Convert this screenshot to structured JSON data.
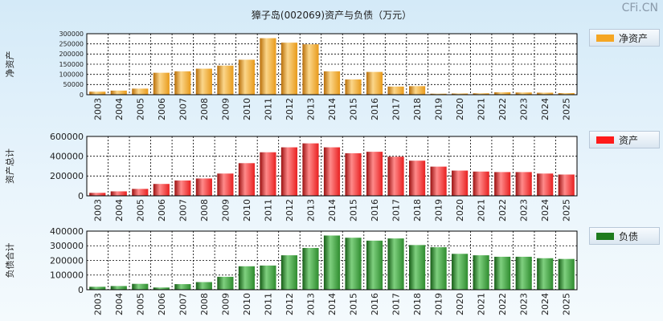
{
  "title": "獐子岛(002069)资产与负债（万元）",
  "watermark": "CFi.CN",
  "colors": {
    "equity": "#f5a623",
    "assets": "#e82020",
    "liabilities": "#228b22"
  },
  "chart_data": [
    {
      "type": "bar",
      "key": "equity",
      "ylabel": "净资产",
      "legend": "净资产",
      "ylim": [
        0,
        300000
      ],
      "yticks": [
        "0",
        "50000",
        "100000",
        "150000",
        "200000",
        "250000",
        "300000"
      ],
      "categories": [
        "2003",
        "2004",
        "2005",
        "2006",
        "2007",
        "2008",
        "2009",
        "2010",
        "2011",
        "2012",
        "2013",
        "2014",
        "2015",
        "2016",
        "2017",
        "2018",
        "2019",
        "2020",
        "2021",
        "2022",
        "2023",
        "2024",
        "2025"
      ],
      "values": [
        15000,
        20000,
        30000,
        108000,
        115000,
        128000,
        143000,
        172000,
        278000,
        256000,
        248000,
        115000,
        75000,
        112000,
        40000,
        42000,
        5000,
        6000,
        7000,
        12000,
        11000,
        10000,
        8000
      ]
    },
    {
      "type": "bar",
      "key": "assets",
      "ylabel": "资产总计",
      "legend": "资产",
      "ylim": [
        0,
        600000
      ],
      "yticks": [
        "0",
        "200000",
        "400000",
        "600000"
      ],
      "categories": [
        "2003",
        "2004",
        "2005",
        "2006",
        "2007",
        "2008",
        "2009",
        "2010",
        "2011",
        "2012",
        "2013",
        "2014",
        "2015",
        "2016",
        "2017",
        "2018",
        "2019",
        "2020",
        "2021",
        "2022",
        "2023",
        "2024",
        "2025"
      ],
      "values": [
        30000,
        45000,
        70000,
        120000,
        155000,
        175000,
        225000,
        330000,
        440000,
        490000,
        530000,
        490000,
        430000,
        445000,
        395000,
        355000,
        295000,
        255000,
        245000,
        240000,
        240000,
        225000,
        215000
      ]
    },
    {
      "type": "bar",
      "key": "liabilities",
      "ylabel": "负债合计",
      "legend": "负债",
      "ylim": [
        0,
        400000
      ],
      "yticks": [
        "0",
        "100000",
        "200000",
        "300000",
        "400000"
      ],
      "categories": [
        "2003",
        "2004",
        "2005",
        "2006",
        "2007",
        "2008",
        "2009",
        "2010",
        "2011",
        "2012",
        "2013",
        "2014",
        "2015",
        "2016",
        "2017",
        "2018",
        "2019",
        "2020",
        "2021",
        "2022",
        "2023",
        "2024",
        "2025"
      ],
      "values": [
        20000,
        25000,
        40000,
        15000,
        38000,
        52000,
        88000,
        160000,
        165000,
        235000,
        285000,
        370000,
        355000,
        335000,
        350000,
        305000,
        290000,
        245000,
        235000,
        225000,
        225000,
        215000,
        210000
      ]
    }
  ]
}
